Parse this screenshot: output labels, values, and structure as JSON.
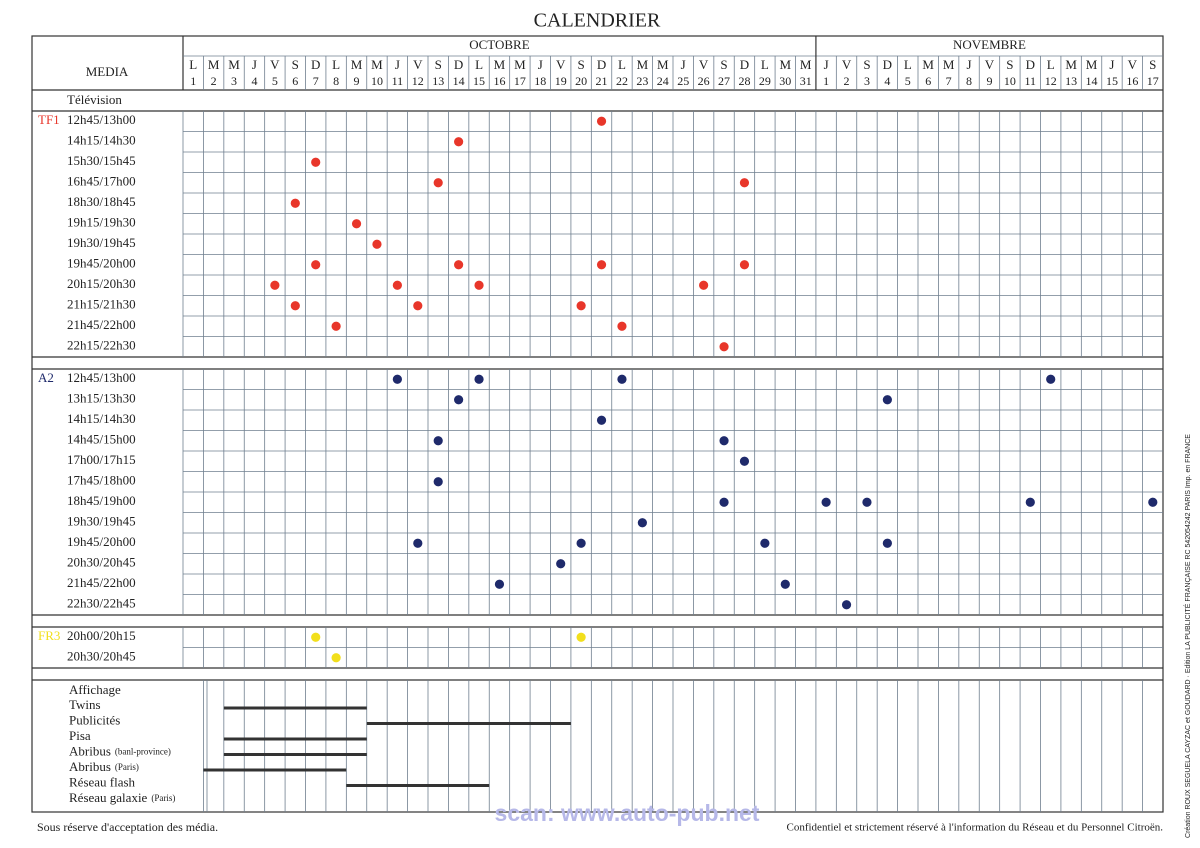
{
  "title": "CALENDRIER",
  "header": {
    "media": "MEDIA",
    "months": [
      {
        "name": "OCTOBRE",
        "days": [
          {
            "d": "L",
            "n": "1"
          },
          {
            "d": "M",
            "n": "2"
          },
          {
            "d": "M",
            "n": "3"
          },
          {
            "d": "J",
            "n": "4"
          },
          {
            "d": "V",
            "n": "5"
          },
          {
            "d": "S",
            "n": "6"
          },
          {
            "d": "D",
            "n": "7"
          },
          {
            "d": "L",
            "n": "8"
          },
          {
            "d": "M",
            "n": "9"
          },
          {
            "d": "M",
            "n": "10"
          },
          {
            "d": "J",
            "n": "11"
          },
          {
            "d": "V",
            "n": "12"
          },
          {
            "d": "S",
            "n": "13"
          },
          {
            "d": "D",
            "n": "14"
          },
          {
            "d": "L",
            "n": "15"
          },
          {
            "d": "M",
            "n": "16"
          },
          {
            "d": "M",
            "n": "17"
          },
          {
            "d": "J",
            "n": "18"
          },
          {
            "d": "V",
            "n": "19"
          },
          {
            "d": "S",
            "n": "20"
          },
          {
            "d": "D",
            "n": "21"
          },
          {
            "d": "L",
            "n": "22"
          },
          {
            "d": "M",
            "n": "23"
          },
          {
            "d": "M",
            "n": "24"
          },
          {
            "d": "J",
            "n": "25"
          },
          {
            "d": "V",
            "n": "26"
          },
          {
            "d": "S",
            "n": "27"
          },
          {
            "d": "D",
            "n": "28"
          },
          {
            "d": "L",
            "n": "29"
          },
          {
            "d": "M",
            "n": "30"
          },
          {
            "d": "M",
            "n": "31"
          }
        ]
      },
      {
        "name": "NOVEMBRE",
        "days": [
          {
            "d": "J",
            "n": "1"
          },
          {
            "d": "V",
            "n": "2"
          },
          {
            "d": "S",
            "n": "3"
          },
          {
            "d": "D",
            "n": "4"
          },
          {
            "d": "L",
            "n": "5"
          },
          {
            "d": "M",
            "n": "6"
          },
          {
            "d": "M",
            "n": "7"
          },
          {
            "d": "J",
            "n": "8"
          },
          {
            "d": "V",
            "n": "9"
          },
          {
            "d": "S",
            "n": "10"
          },
          {
            "d": "D",
            "n": "11"
          },
          {
            "d": "L",
            "n": "12"
          },
          {
            "d": "M",
            "n": "13"
          },
          {
            "d": "M",
            "n": "14"
          },
          {
            "d": "J",
            "n": "15"
          },
          {
            "d": "V",
            "n": "16"
          },
          {
            "d": "S",
            "n": "17"
          }
        ]
      }
    ]
  },
  "section": "Télévision",
  "channels": [
    {
      "name": "TF1",
      "color": "#e8362a",
      "slots": [
        {
          "time": "12h45/13h00",
          "dots": [
            20
          ]
        },
        {
          "time": "14h15/14h30",
          "dots": [
            13
          ]
        },
        {
          "time": "15h30/15h45",
          "dots": [
            6
          ]
        },
        {
          "time": "16h45/17h00",
          "dots": [
            12,
            27
          ]
        },
        {
          "time": "18h30/18h45",
          "dots": [
            5
          ]
        },
        {
          "time": "19h15/19h30",
          "dots": [
            8
          ]
        },
        {
          "time": "19h30/19h45",
          "dots": [
            9
          ]
        },
        {
          "time": "19h45/20h00",
          "dots": [
            6,
            13,
            20,
            27
          ]
        },
        {
          "time": "20h15/20h30",
          "dots": [
            4,
            10,
            14,
            25
          ]
        },
        {
          "time": "21h15/21h30",
          "dots": [
            5,
            11,
            19
          ]
        },
        {
          "time": "21h45/22h00",
          "dots": [
            7,
            21
          ]
        },
        {
          "time": "22h15/22h30",
          "dots": [
            26
          ]
        }
      ]
    },
    {
      "name": "A2",
      "color": "#1f2a6b",
      "slots": [
        {
          "time": "12h45/13h00",
          "dots": [
            10,
            14,
            21,
            42
          ]
        },
        {
          "time": "13h15/13h30",
          "dots": [
            13,
            34
          ]
        },
        {
          "time": "14h15/14h30",
          "dots": [
            20
          ]
        },
        {
          "time": "14h45/15h00",
          "dots": [
            12,
            26
          ]
        },
        {
          "time": "17h00/17h15",
          "dots": [
            27
          ]
        },
        {
          "time": "17h45/18h00",
          "dots": [
            12
          ]
        },
        {
          "time": "18h45/19h00",
          "dots": [
            26,
            31,
            33,
            41,
            47
          ]
        },
        {
          "time": "19h30/19h45",
          "dots": [
            22
          ]
        },
        {
          "time": "19h45/20h00",
          "dots": [
            11,
            19,
            28,
            34
          ]
        },
        {
          "time": "20h30/20h45",
          "dots": [
            18
          ]
        },
        {
          "time": "21h45/22h00",
          "dots": [
            15,
            29
          ]
        },
        {
          "time": "22h30/22h45",
          "dots": [
            32
          ]
        }
      ]
    },
    {
      "name": "FR3",
      "color": "#f2df1c",
      "slots": [
        {
          "time": "20h00/20h15",
          "dots": [
            6,
            19
          ]
        },
        {
          "time": "20h30/20h45",
          "dots": [
            7
          ]
        }
      ]
    }
  ],
  "affichage": {
    "title": "Affichage",
    "items": [
      {
        "label": "Twins",
        "bar": [
          2,
          9
        ]
      },
      {
        "label": "Publicités",
        "bar": [
          9,
          19
        ]
      },
      {
        "label": "Pisa",
        "bar": [
          2,
          9
        ]
      },
      {
        "label": "Abribus",
        "note": "(banl-province)",
        "bar": [
          2,
          9
        ]
      },
      {
        "label": "Abribus",
        "note": "(Paris)",
        "bar": [
          1,
          8
        ]
      },
      {
        "label": "Réseau flash",
        "bar": [
          8,
          15
        ]
      },
      {
        "label": "Réseau galaxie",
        "note": "(Paris)"
      }
    ]
  },
  "footer": {
    "left": "Sous réserve d'acceptation des média.",
    "right": "Confidentiel et strictement réservé à l'information du Réseau et du Personnel Citroën."
  },
  "side_text": "Création ROUX SEGUELA CAYZAC et GOUDARD · Edition LA PUBLICITÉ FRANÇAISE RC 542054242 PARIS Imp. en FRANCE",
  "watermark": "scan: www.auto-pub.net"
}
